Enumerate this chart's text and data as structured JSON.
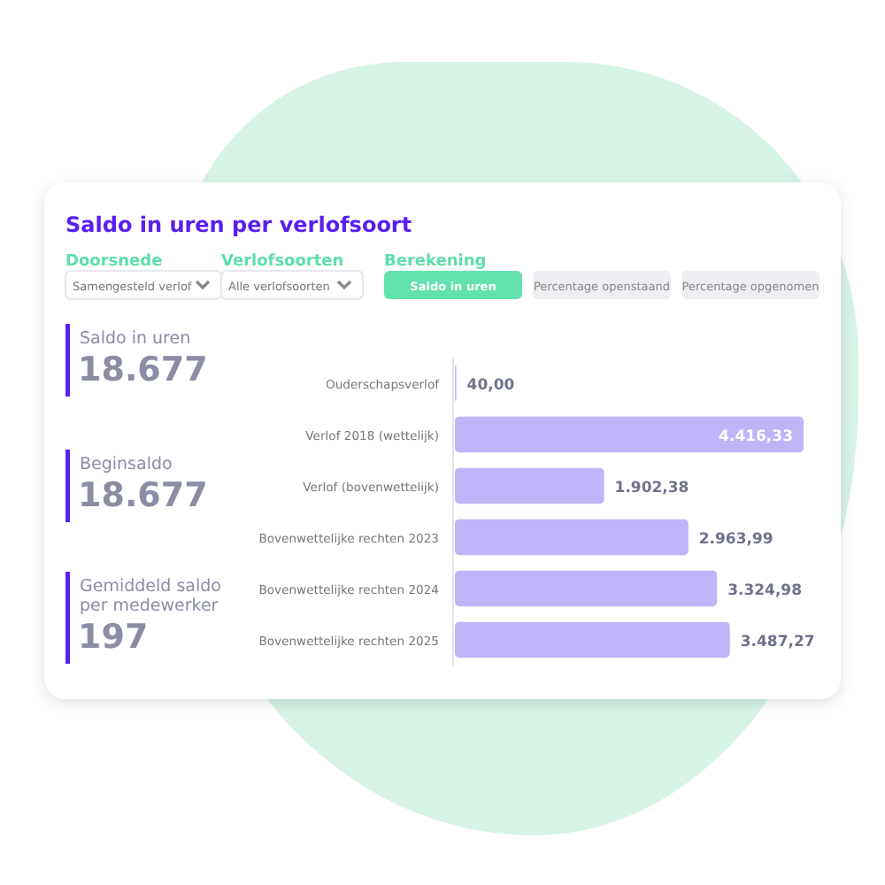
{
  "chart_data": [
    {
      "type": "bar",
      "title": "Saldo in uren per verlofsoort",
      "orientation": "horizontal",
      "annotations": [
        "Doorsnede",
        "Samengesteld verlof",
        "Verlofsoorten",
        "Alle verlofsoorten",
        "Berekening",
        "Saldo in uren",
        "Percentage openstaand",
        "Percentage opgenomen"
      ],
      "categories": [
        "Ouderschapsverlof",
        "Verlof 2018 (wettelijk)",
        "Verlof (bovenwettelijk)",
        "Bovenwettelijke rechten 2023",
        "Bovenwettelijke rechten 2024",
        "Bovenwettelijke rechten 2025"
      ],
      "values": [
        40.0,
        4416.33,
        1902.38,
        2963.99,
        3324.98,
        3487.27
      ],
      "value_labels": [
        "40,00",
        "4.416,33",
        "1.902,38",
        "2.963,99",
        "3.324,98",
        "3.487,27"
      ],
      "color": "#c1b3f7",
      "tick_labels": "y"
    },
    {
      "type": "other",
      "annotations": [
        "Saldo in uren",
        "18.677",
        "Beginsaldo",
        "18.677",
        "Gemiddeld saldo per medewerker",
        "197"
      ]
    }
  ]
}
